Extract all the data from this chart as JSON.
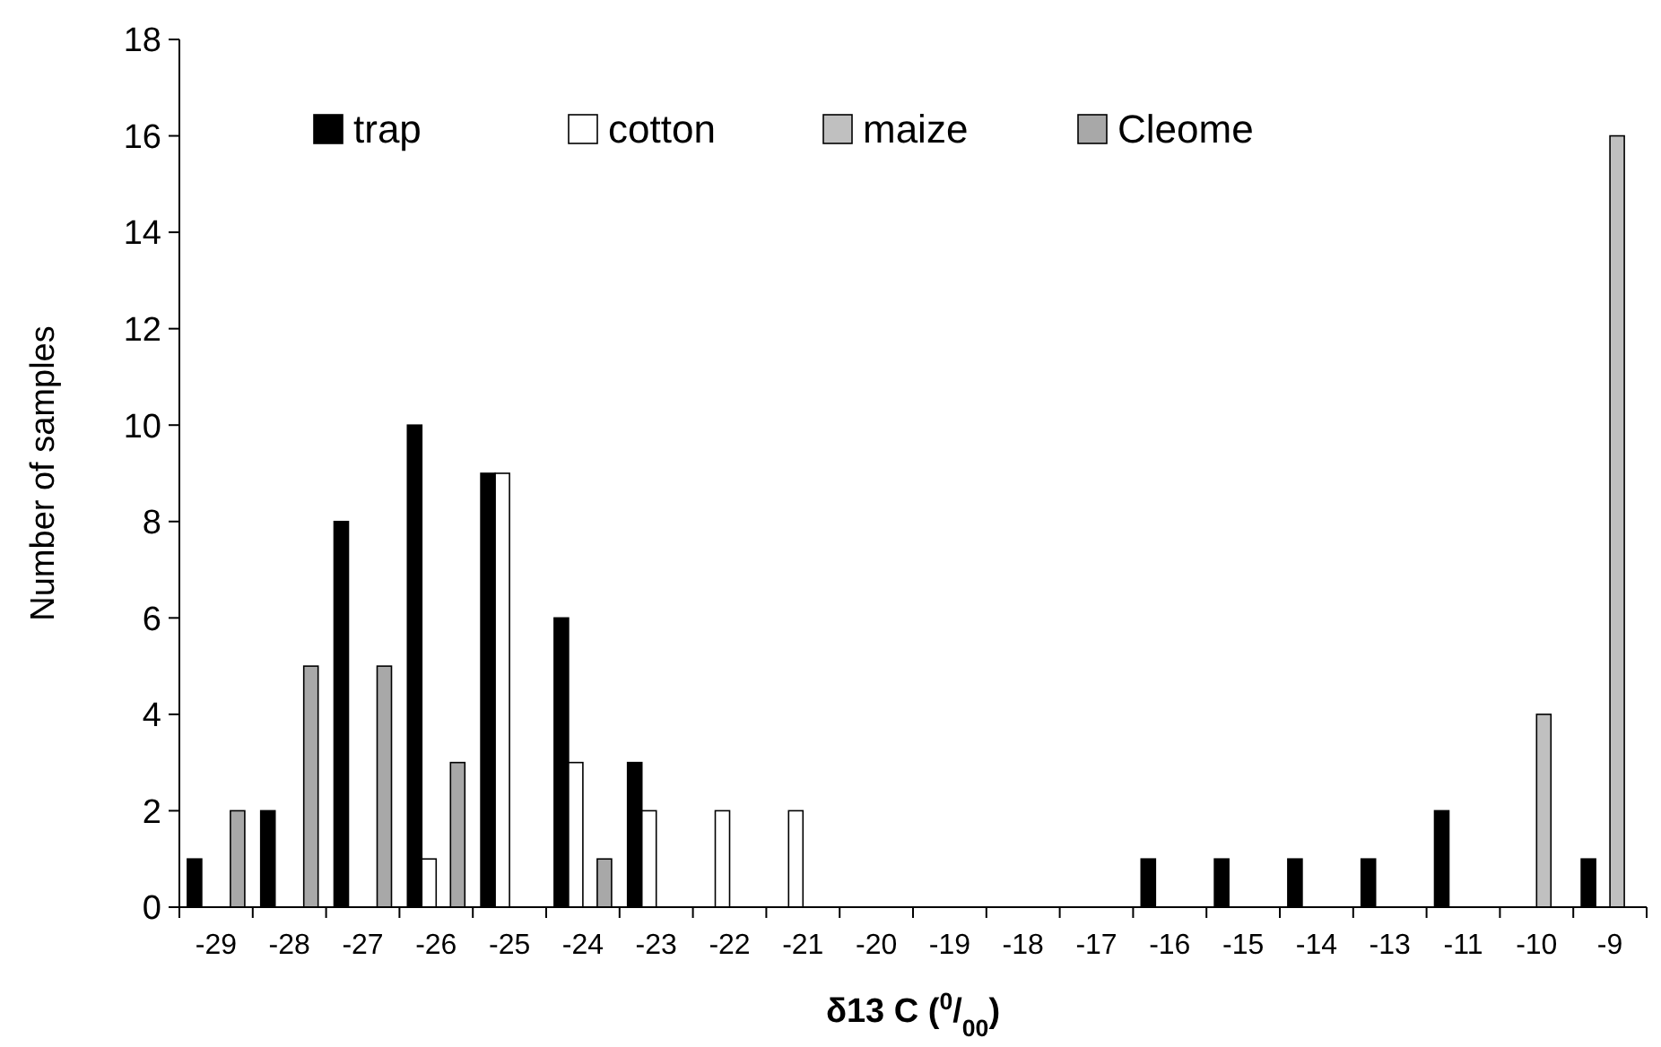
{
  "chart_data": {
    "type": "bar",
    "xlabel": "δ13 C ($^{0}$/$_{00}$)",
    "ylabel": "Number of samples",
    "categories": [
      "-29",
      "-28",
      "-27",
      "-26",
      "-25",
      "-24",
      "-23",
      "-22",
      "-21",
      "-20",
      "-19",
      "-18",
      "-17",
      "-16",
      "-15",
      "-14",
      "-13",
      "-11",
      "-10",
      "-9"
    ],
    "series": [
      {
        "name": "trap",
        "color": "#000000",
        "values": [
          1,
          2,
          8,
          10,
          9,
          6,
          3,
          0,
          0,
          0,
          0,
          0,
          0,
          1,
          1,
          1,
          1,
          2,
          0,
          1
        ]
      },
      {
        "name": "cotton",
        "color": "#ffffff",
        "values": [
          0,
          0,
          0,
          1,
          9,
          3,
          2,
          2,
          2,
          0,
          0,
          0,
          0,
          0,
          0,
          0,
          0,
          0,
          0,
          0
        ]
      },
      {
        "name": "maize",
        "color": "#c0c0c0",
        "values": [
          0,
          0,
          0,
          0,
          0,
          0,
          0,
          0,
          0,
          0,
          0,
          0,
          0,
          0,
          0,
          0,
          0,
          0,
          4,
          16
        ]
      },
      {
        "name": "Cleome",
        "color": "#a8a8a8",
        "values": [
          2,
          5,
          5,
          3,
          0,
          1,
          0,
          0,
          0,
          0,
          0,
          0,
          0,
          0,
          0,
          0,
          0,
          0,
          0,
          0
        ]
      }
    ],
    "ylim": [
      0,
      18
    ],
    "yticks": [
      0,
      2,
      4,
      6,
      8,
      10,
      12,
      14,
      16,
      18
    ],
    "grid": false,
    "legend": "top"
  }
}
